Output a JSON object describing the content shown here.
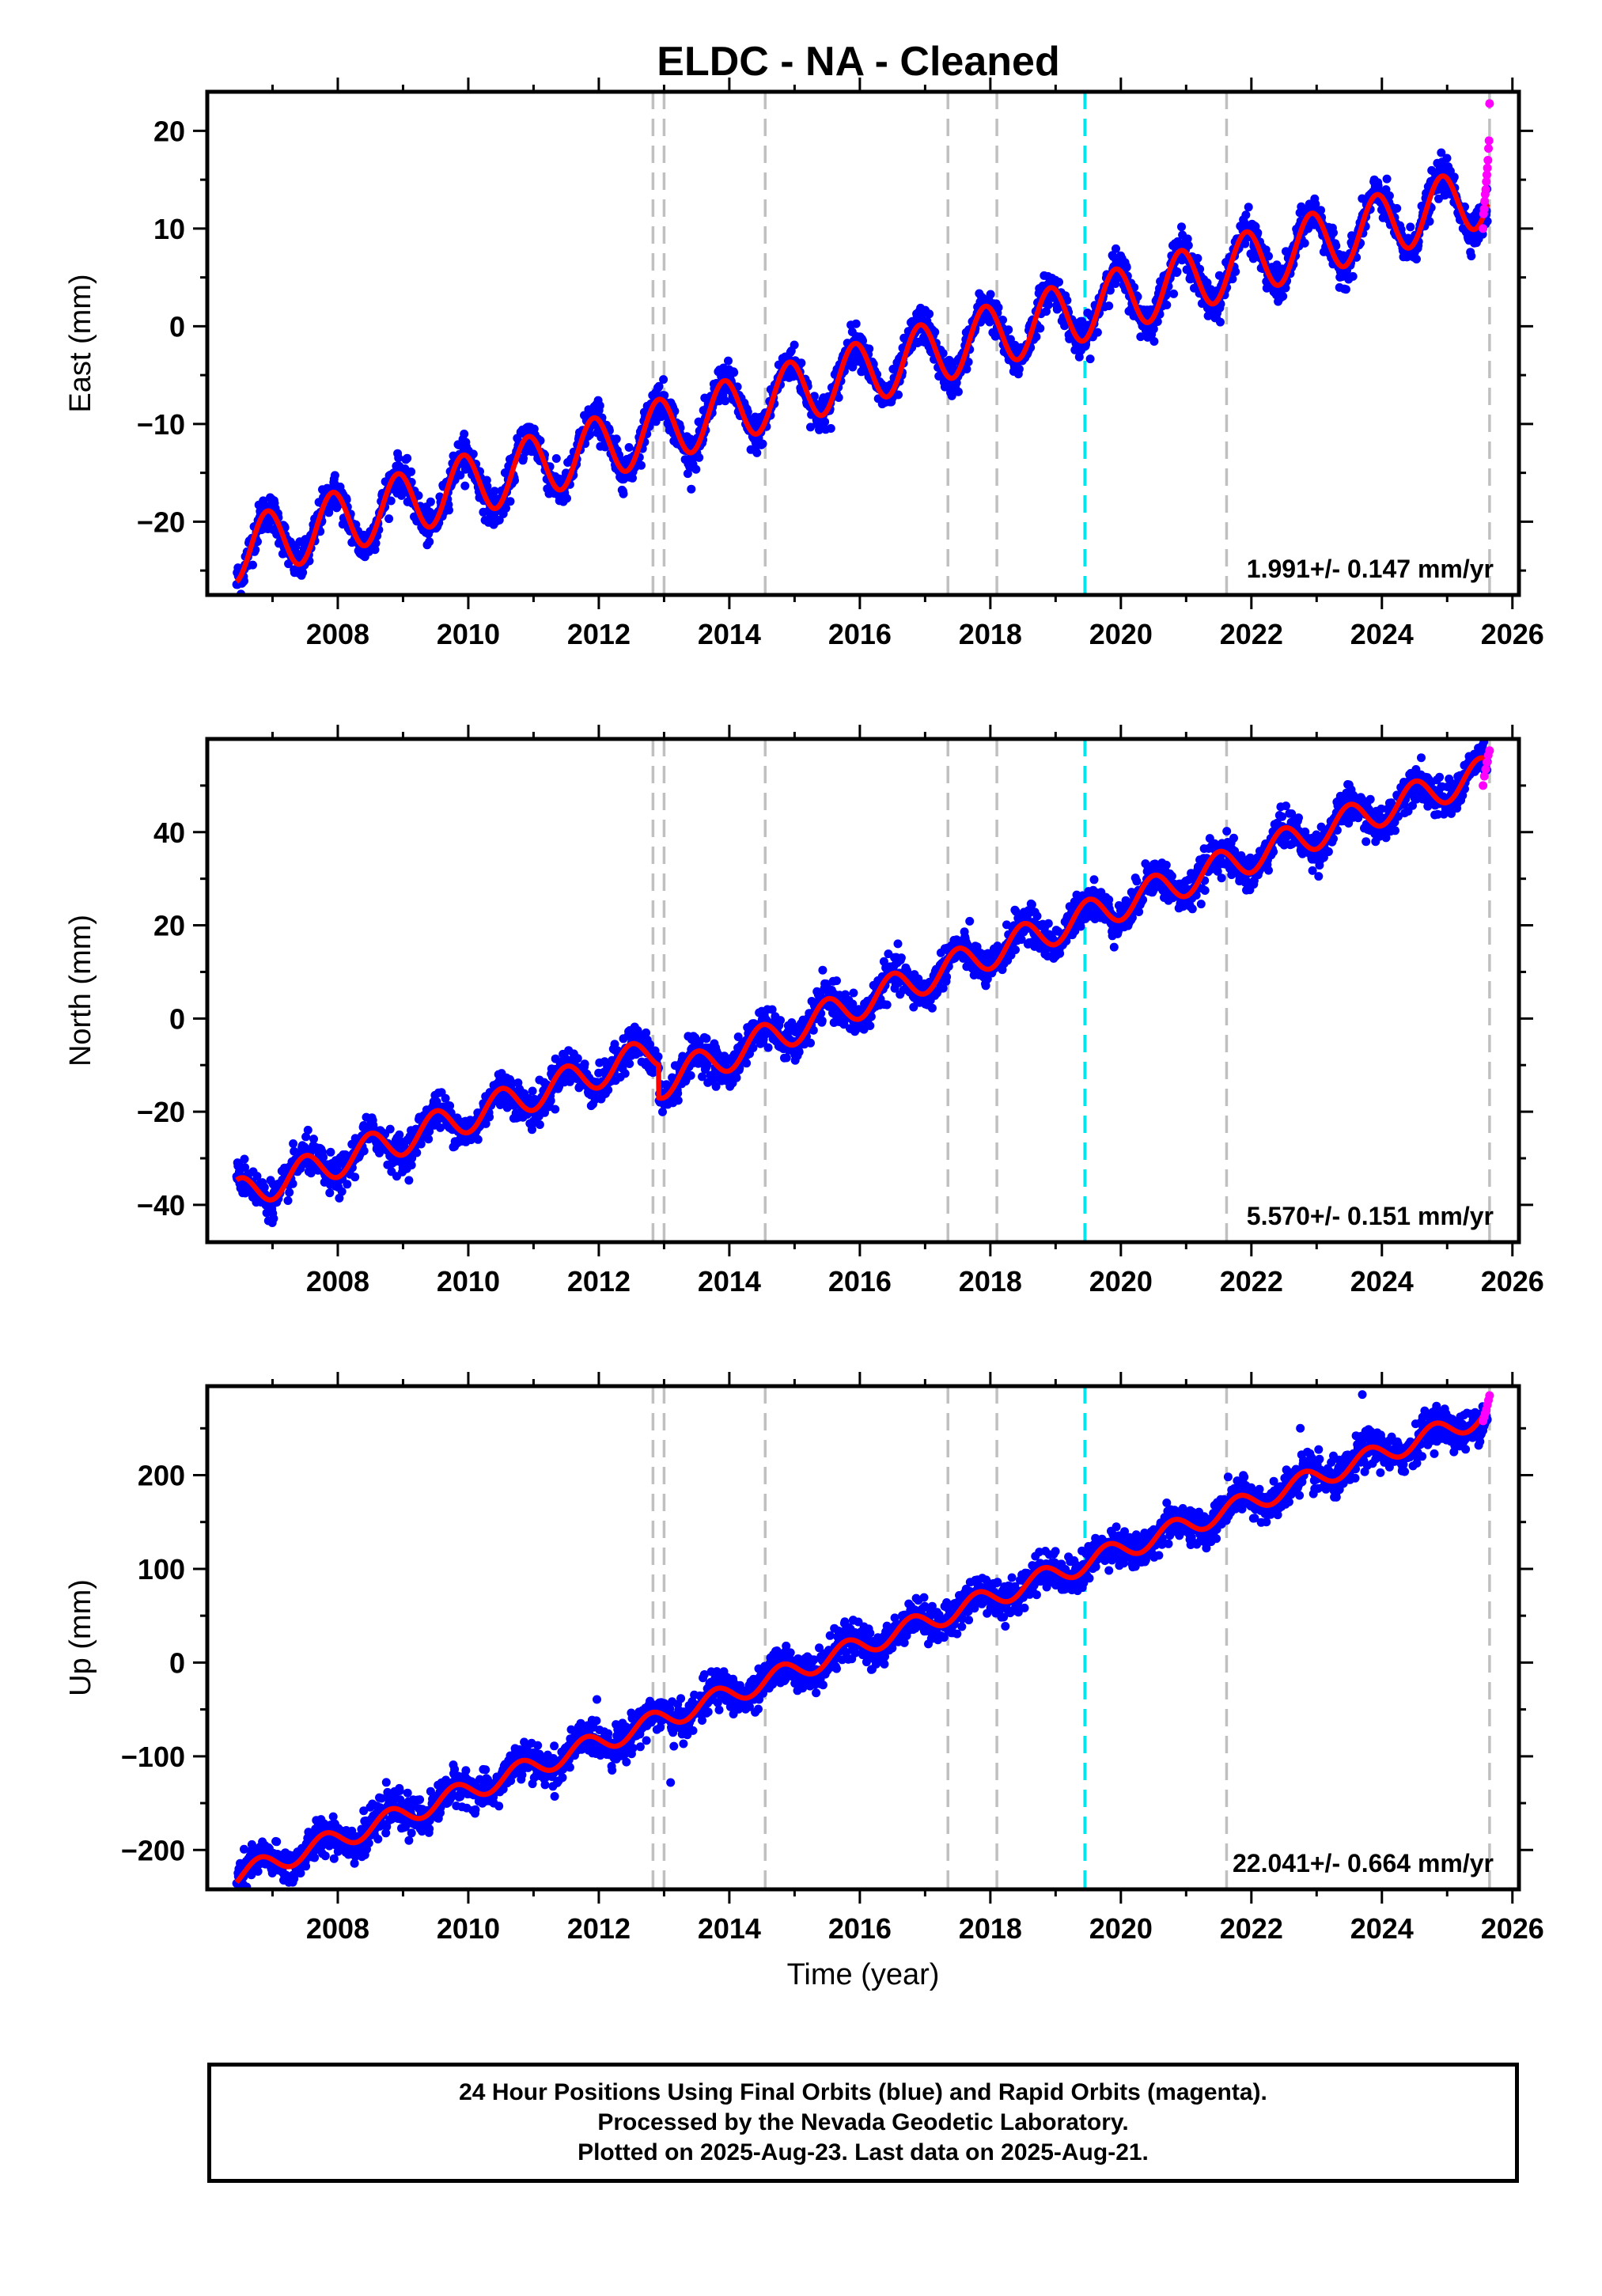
{
  "title": "ELDC  - NA - Cleaned",
  "colors": {
    "final": "#0000ff",
    "rapid": "#ff00ff",
    "model": "#ff0000",
    "event_gray": "#c0c0c0",
    "event_cyan": "#00e5ee"
  },
  "chart_data": [
    {
      "type": "scatter",
      "ylabel": "East (mm)",
      "xlabel": "",
      "xlim": [
        2006.0,
        2026.1
      ],
      "ylim": [
        -27.5,
        24.0
      ],
      "xticks": [
        "2008",
        "2010",
        "2012",
        "2014",
        "2016",
        "2018",
        "2020",
        "2022",
        "2024",
        "2026"
      ],
      "yticks": [
        "−20",
        "−10",
        "0",
        "10",
        "20"
      ],
      "rate_label": "1.991+/- 0.147 mm/yr",
      "model": {
        "start": 2006.45,
        "end": 2025.62,
        "y_start": -23.0,
        "y_end": 13.5,
        "annual_amplitude": 3.2,
        "peak_phase": 0.92
      },
      "rapid_points": {
        "start": 2025.55,
        "end": 2025.65,
        "y_values": [
          10.0,
          11.5,
          12.0,
          12.8,
          13.5,
          14.0,
          14.8,
          15.5,
          16.2,
          17.0,
          18.2,
          19.0,
          22.8
        ]
      },
      "series": [
        {
          "name": "Final Orbits (blue)",
          "kind": "points",
          "color": "#0000ff"
        },
        {
          "name": "Rapid Orbits (magenta)",
          "kind": "points",
          "color": "#ff00ff"
        }
      ]
    },
    {
      "type": "scatter",
      "ylabel": "North (mm)",
      "xlabel": "",
      "xlim": [
        2006.0,
        2026.1
      ],
      "ylim": [
        -48.0,
        60.0
      ],
      "xticks": [
        "2008",
        "2010",
        "2012",
        "2014",
        "2016",
        "2018",
        "2020",
        "2022",
        "2024",
        "2026"
      ],
      "yticks": [
        "−40",
        "−20",
        "0",
        "20",
        "40"
      ],
      "rate_label": "5.570+/- 0.151 mm/yr",
      "model": {
        "start": 2006.45,
        "end": 2025.62,
        "y_start": -38.0,
        "y_end": 54.0,
        "annual_amplitude": 3.5,
        "peak_phase": 0.5,
        "offset_at": 2012.92,
        "offset_value": -7.0
      },
      "rapid_points": {
        "start": 2025.55,
        "end": 2025.65,
        "y_values": [
          50.0,
          52.0,
          53.5,
          55.0,
          56.5,
          57.5
        ]
      },
      "series": [
        {
          "name": "Final Orbits (blue)",
          "kind": "points",
          "color": "#0000ff"
        },
        {
          "name": "Rapid Orbits (magenta)",
          "kind": "points",
          "color": "#ff00ff"
        }
      ]
    },
    {
      "type": "scatter",
      "ylabel": "Up (mm)",
      "xlabel": "Time (year)",
      "xlim": [
        2006.0,
        2026.1
      ],
      "ylim": [
        -242.0,
        295.0
      ],
      "xticks": [
        "2008",
        "2010",
        "2012",
        "2014",
        "2016",
        "2018",
        "2020",
        "2022",
        "2024",
        "2026"
      ],
      "yticks": [
        "−200",
        "−100",
        "0",
        "100",
        "200"
      ],
      "rate_label": "22.041+/- 0.664 mm/yr",
      "model": {
        "start": 2006.45,
        "end": 2025.62,
        "y_start": -228.0,
        "y_end": 265.0,
        "annual_amplitude": 11.0,
        "peak_phase": 0.8
      },
      "rapid_points": {
        "start": 2025.55,
        "end": 2025.65,
        "y_values": [
          258.0,
          262.0,
          266.0,
          270.0,
          275.0,
          280.0,
          285.0
        ]
      },
      "outliers": [
        [
          2023.7,
          286.0
        ],
        [
          2022.75,
          250.0
        ],
        [
          2013.1,
          -128.0
        ],
        [
          2015.9,
          45.0
        ],
        [
          2017.3,
          60.0
        ]
      ],
      "series": [
        {
          "name": "Final Orbits (blue)",
          "kind": "points",
          "color": "#0000ff"
        },
        {
          "name": "Rapid Orbits (magenta)",
          "kind": "points",
          "color": "#ff00ff"
        }
      ]
    }
  ],
  "events_gray": [
    2012.83,
    2013.0,
    2014.55,
    2017.35,
    2018.1,
    2021.62,
    2025.65
  ],
  "events_cyan": [
    2019.45
  ],
  "footer": {
    "line1": "24 Hour Positions Using Final Orbits (blue) and Rapid Orbits (magenta).",
    "line2": "Processed by the Nevada Geodetic Laboratory.",
    "line3": "Plotted on 2025-Aug-23. Last data on 2025-Aug-21."
  }
}
